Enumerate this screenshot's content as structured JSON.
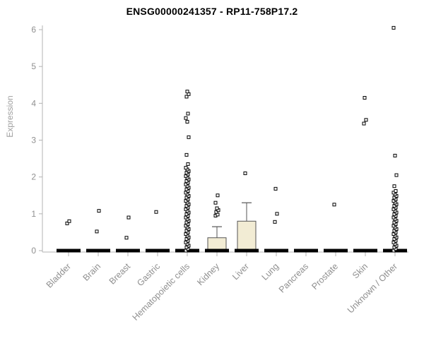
{
  "chart_data": {
    "type": "boxplot",
    "title": "ENSG00000241357 - RP11-758P17.2",
    "ylabel": "Expression",
    "ylim": [
      0,
      6
    ],
    "yticks": [
      0,
      1,
      2,
      3,
      4,
      5,
      6
    ],
    "grid": false,
    "legend": "none",
    "axis_color": "#b3b3b3",
    "tick_label_color": "#8f8f8f",
    "box_fill": "#f2ecd4",
    "box_stroke": "#555555",
    "point_color": "#000000",
    "categories": [
      "Bladder",
      "Brain",
      "Breast",
      "Gastric",
      "Hematopoietic cells",
      "Kidney",
      "Liver",
      "Lung",
      "Pancreas",
      "Prostate",
      "Skin",
      "Unknown / Other"
    ],
    "series": [
      {
        "category": "Bladder",
        "zero_bar": true,
        "points": [
          0.74,
          0.8
        ]
      },
      {
        "category": "Brain",
        "zero_bar": true,
        "points": [
          0.52,
          1.08
        ]
      },
      {
        "category": "Breast",
        "zero_bar": true,
        "points": [
          0.35,
          0.9
        ]
      },
      {
        "category": "Gastric",
        "zero_bar": true,
        "points": [
          1.05
        ]
      },
      {
        "category": "Hematopoietic cells",
        "zero_bar": true,
        "dense": [
          0,
          2.25
        ],
        "points": [
          2.35,
          2.6,
          3.08,
          3.5,
          3.6,
          3.72,
          4.18,
          4.25,
          4.32
        ]
      },
      {
        "category": "Kidney",
        "zero_bar": true,
        "box": {
          "low": 0,
          "q1": 0,
          "median": 0,
          "q3": 0.35,
          "high": 0.65
        },
        "points": [
          0.95,
          0.98,
          1.05,
          1.1,
          1.15,
          1.3,
          1.5
        ]
      },
      {
        "category": "Liver",
        "zero_bar": true,
        "box": {
          "low": 0,
          "q1": 0,
          "median": 0,
          "q3": 0.8,
          "high": 1.3
        },
        "points": [
          2.1
        ]
      },
      {
        "category": "Lung",
        "zero_bar": true,
        "points": [
          0.78,
          1.0,
          1.68
        ]
      },
      {
        "category": "Pancreas",
        "zero_bar": true,
        "points": []
      },
      {
        "category": "Prostate",
        "zero_bar": true,
        "points": [
          1.25
        ]
      },
      {
        "category": "Skin",
        "zero_bar": true,
        "points": [
          3.45,
          3.55,
          4.15
        ]
      },
      {
        "category": "Unknown / Other",
        "zero_bar": true,
        "dense": [
          0,
          1.6
        ],
        "points": [
          1.75,
          2.05,
          2.58,
          6.05
        ]
      }
    ]
  }
}
